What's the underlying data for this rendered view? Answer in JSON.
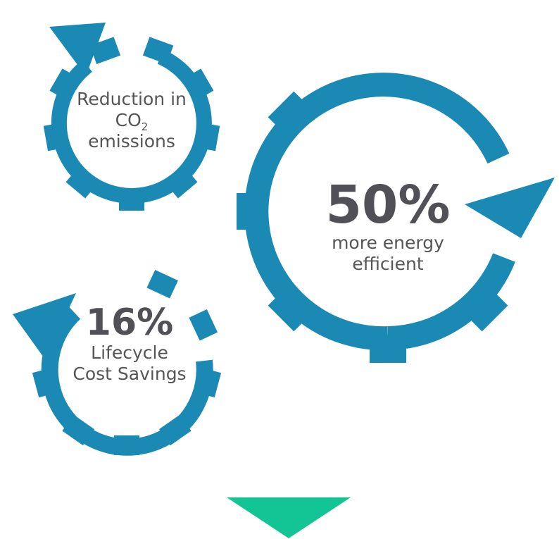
{
  "colors": {
    "gear": "#1a8ab4",
    "text": "#505056",
    "arrow": "#13c595",
    "background": "#ffffff"
  },
  "gear_top": {
    "line1": "Reduction in",
    "co": "CO",
    "sub": "2",
    "line3": "emissions"
  },
  "gear_large": {
    "value": "50%",
    "line1": "more energy",
    "line2": "efficient"
  },
  "gear_bottom": {
    "value": "16%",
    "line1": "Lifecycle",
    "line2": "Cost Savings"
  },
  "icons": [
    "gear-cycle-icon",
    "gear-cycle-icon",
    "gear-cycle-icon",
    "down-arrow-icon"
  ]
}
